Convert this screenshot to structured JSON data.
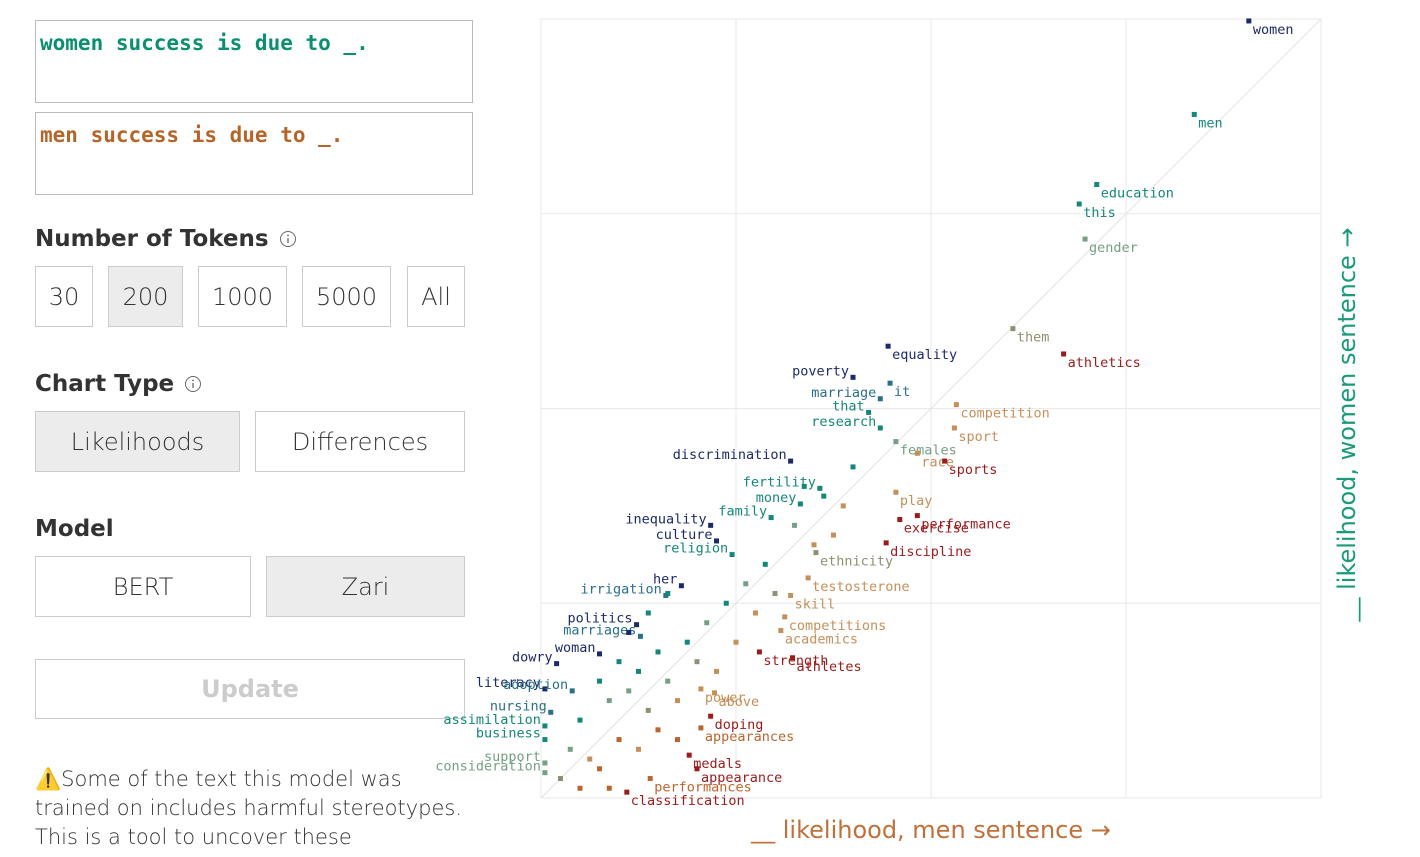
{
  "inputs": [
    "women success is due to _.",
    "men success is due to _."
  ],
  "tokens": {
    "title": "Number of Tokens",
    "options": [
      "30",
      "200",
      "1000",
      "5000",
      "All"
    ]
  },
  "chart_type": {
    "title": "Chart Type",
    "options": [
      "Likelihoods",
      "Differences"
    ]
  },
  "model": {
    "title": "Model",
    "options": [
      "BERT",
      "Zari"
    ]
  },
  "update_button": "Update",
  "warning": "⚠️Some of the text this model was trained on includes harmful stereotypes. This is a tool to uncover these",
  "chart_data": {
    "type": "scatter",
    "x_label": "__ likelihood, men sentence →",
    "y_label": "__ likelihood, women sentence →",
    "xlim": [
      0,
      4
    ],
    "ylim": [
      0,
      4
    ],
    "xticks": [
      0,
      1,
      2,
      3,
      4
    ],
    "yticks": [
      0,
      1,
      2,
      3,
      4
    ],
    "grid": true,
    "points": [
      {
        "label": "women",
        "x": 3.63,
        "y": 3.99,
        "color": "#1b2a6b"
      },
      {
        "label": "men",
        "x": 3.35,
        "y": 3.51,
        "color": "#14877a"
      },
      {
        "label": "education",
        "x": 2.85,
        "y": 3.15,
        "color": "#14877a"
      },
      {
        "label": "this",
        "x": 2.76,
        "y": 3.05,
        "color": "#14877a"
      },
      {
        "label": "gender",
        "x": 2.79,
        "y": 2.87,
        "color": "#74a086"
      },
      {
        "label": "them",
        "x": 2.42,
        "y": 2.41,
        "color": "#8f8f72"
      },
      {
        "label": "athletics",
        "x": 2.68,
        "y": 2.28,
        "color": "#9b1b1b"
      },
      {
        "label": "equality",
        "x": 1.78,
        "y": 2.32,
        "color": "#1b2a6b"
      },
      {
        "label": "poverty",
        "x": 1.6,
        "y": 2.16,
        "color": "#1b2a6b"
      },
      {
        "label": "marriage",
        "x": 1.74,
        "y": 2.05,
        "color": "#2a6f8a"
      },
      {
        "label": "it",
        "x": 1.79,
        "y": 2.13,
        "color": "#2a6f8a"
      },
      {
        "label": "that",
        "x": 1.68,
        "y": 1.98,
        "color": "#14877a"
      },
      {
        "label": "research",
        "x": 1.74,
        "y": 1.9,
        "color": "#14877a"
      },
      {
        "label": "females",
        "x": 1.82,
        "y": 1.83,
        "color": "#74a086"
      },
      {
        "label": "competition",
        "x": 2.13,
        "y": 2.02,
        "color": "#c58f5a"
      },
      {
        "label": "sport",
        "x": 2.12,
        "y": 1.9,
        "color": "#c58f5a"
      },
      {
        "label": "race",
        "x": 1.93,
        "y": 1.77,
        "color": "#c58f5a"
      },
      {
        "label": "sports",
        "x": 2.07,
        "y": 1.73,
        "color": "#9b1b1b"
      },
      {
        "label": "discrimination",
        "x": 1.28,
        "y": 1.73,
        "color": "#1b2a6b"
      },
      {
        "label": "fertility",
        "x": 1.43,
        "y": 1.59,
        "color": "#14877a"
      },
      {
        "label": "money",
        "x": 1.33,
        "y": 1.51,
        "color": "#14877a"
      },
      {
        "label": "family",
        "x": 1.18,
        "y": 1.44,
        "color": "#14877a"
      },
      {
        "label": "play",
        "x": 1.82,
        "y": 1.57,
        "color": "#c58f5a"
      },
      {
        "label": "performance",
        "x": 1.93,
        "y": 1.45,
        "color": "#9b1b1b"
      },
      {
        "label": "exercise",
        "x": 1.84,
        "y": 1.43,
        "color": "#9b1b1b"
      },
      {
        "label": "inequality",
        "x": 0.87,
        "y": 1.4,
        "color": "#1b2a6b"
      },
      {
        "label": "culture",
        "x": 0.9,
        "y": 1.32,
        "color": "#1b2a6b"
      },
      {
        "label": "religion",
        "x": 0.98,
        "y": 1.25,
        "color": "#14877a"
      },
      {
        "label": "ethnicity",
        "x": 1.41,
        "y": 1.26,
        "color": "#8f8f72"
      },
      {
        "label": "discipline",
        "x": 1.77,
        "y": 1.31,
        "color": "#9b1b1b"
      },
      {
        "label": "her",
        "x": 0.72,
        "y": 1.09,
        "color": "#1b2a6b"
      },
      {
        "label": "irrigation",
        "x": 0.64,
        "y": 1.04,
        "color": "#2a6f8a"
      },
      {
        "label": "testosterone",
        "x": 1.37,
        "y": 1.13,
        "color": "#c58f5a"
      },
      {
        "label": "skill",
        "x": 1.28,
        "y": 1.04,
        "color": "#c58f5a"
      },
      {
        "label": "politics",
        "x": 0.49,
        "y": 0.89,
        "color": "#1b2a6b"
      },
      {
        "label": "marriages",
        "x": 0.51,
        "y": 0.83,
        "color": "#2a6f8a"
      },
      {
        "label": "competitions",
        "x": 1.25,
        "y": 0.93,
        "color": "#c58f5a"
      },
      {
        "label": "academics",
        "x": 1.23,
        "y": 0.86,
        "color": "#c58f5a"
      },
      {
        "label": "woman",
        "x": 0.3,
        "y": 0.74,
        "color": "#1b2a6b"
      },
      {
        "label": "strength",
        "x": 1.12,
        "y": 0.75,
        "color": "#9b1b1b"
      },
      {
        "label": "dowry",
        "x": 0.08,
        "y": 0.69,
        "color": "#1b2a6b"
      },
      {
        "label": "athletes",
        "x": 1.29,
        "y": 0.72,
        "color": "#9b1b1b"
      },
      {
        "label": "literacy",
        "x": 0.02,
        "y": 0.56,
        "color": "#1b2a6b"
      },
      {
        "label": "adoption",
        "x": 0.16,
        "y": 0.55,
        "color": "#2a6f8a"
      },
      {
        "label": "nursing",
        "x": 0.05,
        "y": 0.44,
        "color": "#2a6f8a"
      },
      {
        "label": "power",
        "x": 0.82,
        "y": 0.56,
        "color": "#c58f5a"
      },
      {
        "label": "above",
        "x": 0.89,
        "y": 0.54,
        "color": "#c58f5a"
      },
      {
        "label": "doping",
        "x": 0.87,
        "y": 0.42,
        "color": "#9b1b1b"
      },
      {
        "label": "appearances",
        "x": 0.82,
        "y": 0.36,
        "color": "#b9662e"
      },
      {
        "label": "assimilation",
        "x": 0.02,
        "y": 0.37,
        "color": "#14877a"
      },
      {
        "label": "business",
        "x": 0.02,
        "y": 0.3,
        "color": "#14877a"
      },
      {
        "label": "medals",
        "x": 0.76,
        "y": 0.22,
        "color": "#9b1b1b"
      },
      {
        "label": "support",
        "x": 0.02,
        "y": 0.18,
        "color": "#74a086"
      },
      {
        "label": "appearance",
        "x": 0.8,
        "y": 0.15,
        "color": "#9b1b1b"
      },
      {
        "label": "consideration",
        "x": 0.02,
        "y": 0.13,
        "color": "#74a086"
      },
      {
        "label": "performances",
        "x": 0.56,
        "y": 0.1,
        "color": "#b9662e"
      },
      {
        "label": "classification",
        "x": 0.44,
        "y": 0.03,
        "color": "#9b1b1b"
      },
      {
        "label": null,
        "x": 0.2,
        "y": 0.4,
        "color": "#14877a"
      },
      {
        "label": null,
        "x": 0.3,
        "y": 0.6,
        "color": "#14877a"
      },
      {
        "label": null,
        "x": 0.35,
        "y": 0.5,
        "color": "#74a086"
      },
      {
        "label": null,
        "x": 0.4,
        "y": 0.7,
        "color": "#14877a"
      },
      {
        "label": null,
        "x": 0.45,
        "y": 0.55,
        "color": "#74a086"
      },
      {
        "label": null,
        "x": 0.5,
        "y": 0.65,
        "color": "#14877a"
      },
      {
        "label": null,
        "x": 0.55,
        "y": 0.45,
        "color": "#8f8f72"
      },
      {
        "label": null,
        "x": 0.6,
        "y": 0.75,
        "color": "#14877a"
      },
      {
        "label": null,
        "x": 0.65,
        "y": 0.6,
        "color": "#74a086"
      },
      {
        "label": null,
        "x": 0.7,
        "y": 0.5,
        "color": "#c58f5a"
      },
      {
        "label": null,
        "x": 0.75,
        "y": 0.8,
        "color": "#14877a"
      },
      {
        "label": null,
        "x": 0.8,
        "y": 0.7,
        "color": "#8f8f72"
      },
      {
        "label": null,
        "x": 0.85,
        "y": 0.9,
        "color": "#74a086"
      },
      {
        "label": null,
        "x": 0.9,
        "y": 0.65,
        "color": "#c58f5a"
      },
      {
        "label": null,
        "x": 0.95,
        "y": 1.0,
        "color": "#14877a"
      },
      {
        "label": null,
        "x": 1.0,
        "y": 0.8,
        "color": "#c58f5a"
      },
      {
        "label": null,
        "x": 1.05,
        "y": 1.1,
        "color": "#74a086"
      },
      {
        "label": null,
        "x": 1.1,
        "y": 0.95,
        "color": "#c58f5a"
      },
      {
        "label": null,
        "x": 1.15,
        "y": 1.2,
        "color": "#14877a"
      },
      {
        "label": null,
        "x": 1.2,
        "y": 1.05,
        "color": "#8f8f72"
      },
      {
        "label": null,
        "x": 0.25,
        "y": 0.2,
        "color": "#c58f5a"
      },
      {
        "label": null,
        "x": 0.3,
        "y": 0.15,
        "color": "#b9662e"
      },
      {
        "label": null,
        "x": 0.4,
        "y": 0.3,
        "color": "#b9662e"
      },
      {
        "label": null,
        "x": 0.5,
        "y": 0.25,
        "color": "#c58f5a"
      },
      {
        "label": null,
        "x": 0.6,
        "y": 0.35,
        "color": "#b9662e"
      },
      {
        "label": null,
        "x": 0.15,
        "y": 0.25,
        "color": "#74a086"
      },
      {
        "label": null,
        "x": 0.1,
        "y": 0.1,
        "color": "#8f8f72"
      },
      {
        "label": null,
        "x": 0.2,
        "y": 0.05,
        "color": "#b9662e"
      },
      {
        "label": null,
        "x": 0.35,
        "y": 0.05,
        "color": "#b9662e"
      },
      {
        "label": null,
        "x": 0.7,
        "y": 0.3,
        "color": "#b9662e"
      },
      {
        "label": null,
        "x": 1.3,
        "y": 1.4,
        "color": "#74a086"
      },
      {
        "label": null,
        "x": 1.45,
        "y": 1.55,
        "color": "#14877a"
      },
      {
        "label": null,
        "x": 1.55,
        "y": 1.5,
        "color": "#c58f5a"
      },
      {
        "label": null,
        "x": 1.6,
        "y": 1.7,
        "color": "#14877a"
      },
      {
        "label": null,
        "x": 1.4,
        "y": 1.3,
        "color": "#c58f5a"
      },
      {
        "label": null,
        "x": 1.5,
        "y": 1.35,
        "color": "#c58f5a"
      },
      {
        "label": null,
        "x": 1.35,
        "y": 1.6,
        "color": "#14877a"
      },
      {
        "label": null,
        "x": 0.55,
        "y": 0.95,
        "color": "#14877a"
      },
      {
        "label": null,
        "x": 0.45,
        "y": 0.85,
        "color": "#1b2a6b"
      },
      {
        "label": null,
        "x": 0.65,
        "y": 1.05,
        "color": "#14877a"
      }
    ]
  }
}
